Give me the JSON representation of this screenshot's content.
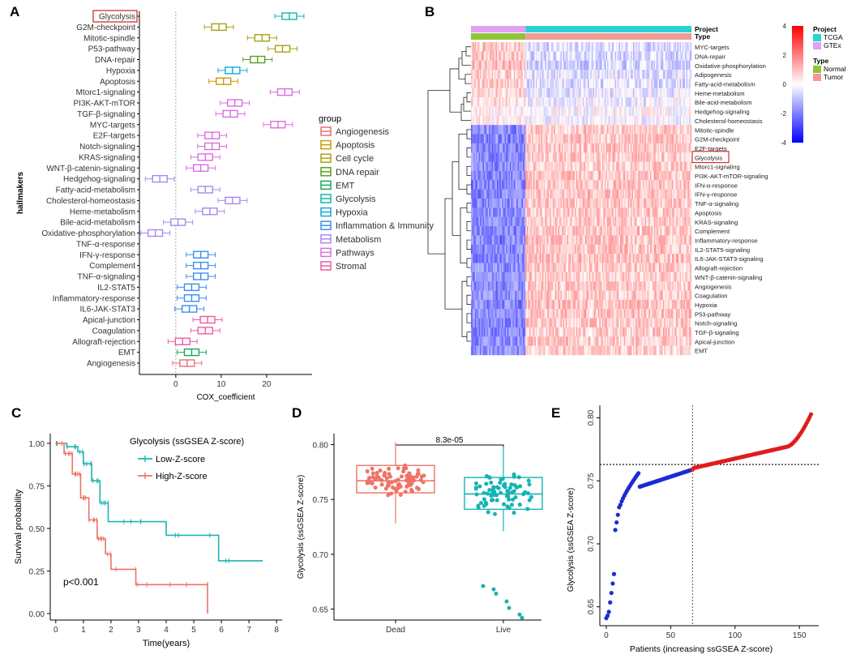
{
  "panels": {
    "a": {
      "letter": "A"
    },
    "b": {
      "letter": "B"
    },
    "c": {
      "letter": "C"
    },
    "d": {
      "letter": "D"
    },
    "e": {
      "letter": "E"
    }
  },
  "colors": {
    "Angiogenesis": "#e66f73",
    "Apoptosis": "#c99a05",
    "Cell cycle": "#a8a212",
    "DNA repair": "#5aa020",
    "EMT": "#16a85e",
    "Glycolysis": "#13b6a8",
    "Hypoxia": "#12a9e0",
    "Inflammation & Immunity": "#3b8ef0",
    "Metabolism": "#a888ee",
    "Pathways": "#da6ee0",
    "Stromal": "#ee5ca2",
    "highlight": "#d32f2f",
    "low": "#1fb3b3",
    "high": "#ee7366",
    "dead": "#ee7366",
    "live": "#16b3b3",
    "blue_pts": "#1a2ad6",
    "red_pts": "#e01c1c",
    "TCGA": "#27d3d3",
    "GTEx": "#e29ff5",
    "Normal": "#8fc43a",
    "Tumor": "#f29a93"
  },
  "chart_data": [
    {
      "type": "boxplot-horizontal",
      "panel": "A",
      "xlabel": "COX_coefficient",
      "ylabel": "hallmakers",
      "xlim": [
        -8,
        30
      ],
      "xticks": [
        0,
        10,
        20
      ],
      "ref_line": 0,
      "highlighted": "Glycolysis",
      "legend_title": "group",
      "legend": [
        "Angiogenesis",
        "Apoptosis",
        "Cell cycle",
        "DNA repair",
        "EMT",
        "Glycolysis",
        "Hypoxia",
        "Inflammation & Immunity",
        "Metabolism",
        "Pathways",
        "Stromal"
      ],
      "rows": [
        {
          "label": "Glycolysis",
          "group": "Glycolysis",
          "median": 25
        },
        {
          "label": "G2M-checkpoint",
          "group": "Cell cycle",
          "median": 9.5
        },
        {
          "label": "Mitotic-spindle",
          "group": "Cell cycle",
          "median": 19
        },
        {
          "label": "P53-pathway",
          "group": "Cell cycle",
          "median": 23.5
        },
        {
          "label": "DNA-repair",
          "group": "DNA repair",
          "median": 18
        },
        {
          "label": "Hypoxia",
          "group": "Hypoxia",
          "median": 12.5
        },
        {
          "label": "Apoptosis",
          "group": "Apoptosis",
          "median": 10.5
        },
        {
          "label": "Mtorc1-signaling",
          "group": "Pathways",
          "median": 24
        },
        {
          "label": "PI3K-AKT-mTOR",
          "group": "Pathways",
          "median": 13
        },
        {
          "label": "TGF-β-signaling",
          "group": "Pathways",
          "median": 12
        },
        {
          "label": "MYC-targets",
          "group": "Pathways",
          "median": 22.5
        },
        {
          "label": "E2F-targets",
          "group": "Pathways",
          "median": 8
        },
        {
          "label": "Notch-signaling",
          "group": "Pathways",
          "median": 8
        },
        {
          "label": "KRAS-signaling",
          "group": "Pathways",
          "median": 6.5
        },
        {
          "label": "WNT-β-catenin-signaling",
          "group": "Pathways",
          "median": 5.5
        },
        {
          "label": "Hedgehog-signaling",
          "group": "Metabolism",
          "median": -3.5
        },
        {
          "label": "Fatty-acid-metabolism",
          "group": "Metabolism",
          "median": 6.5
        },
        {
          "label": "Cholesterol-homeostasis",
          "group": "Metabolism",
          "median": 12.5
        },
        {
          "label": "Heme-metabolism",
          "group": "Metabolism",
          "median": 7.5
        },
        {
          "label": "Bile-acid-metabolism",
          "group": "Metabolism",
          "median": 0.5
        },
        {
          "label": "Oxidative-phosphorylation",
          "group": "Metabolism",
          "median": -4.5
        },
        {
          "label": "TNF-α-response",
          "group": "Inflammation & Immunity",
          "median": null
        },
        {
          "label": "IFN-γ-response",
          "group": "Inflammation & Immunity",
          "median": 5.5
        },
        {
          "label": "Complement",
          "group": "Inflammation & Immunity",
          "median": 5.5
        },
        {
          "label": "TNF-α-signaling",
          "group": "Inflammation & Immunity",
          "median": 5.5
        },
        {
          "label": "IL2-STAT5",
          "group": "Inflammation & Immunity",
          "median": 3.5
        },
        {
          "label": "Inflammatory-response",
          "group": "Inflammation & Immunity",
          "median": 3.5
        },
        {
          "label": "IL6-JAK-STAT3",
          "group": "Inflammation & Immunity",
          "median": 3
        },
        {
          "label": "Apical-junction",
          "group": "Stromal",
          "median": 7
        },
        {
          "label": "Coagulation",
          "group": "Stromal",
          "median": 6.5
        },
        {
          "label": "Allograft-rejection",
          "group": "Stromal",
          "median": 1.5
        },
        {
          "label": "EMT",
          "group": "EMT",
          "median": 3.5
        },
        {
          "label": "Angiogenesis",
          "group": "Angiogenesis",
          "median": 2.5
        }
      ]
    },
    {
      "type": "heatmap",
      "panel": "B",
      "annotations": [
        {
          "name": "Project",
          "levels": [
            "TCGA",
            "GTEx"
          ]
        },
        {
          "name": "Type",
          "levels": [
            "Normal",
            "Tumor"
          ]
        }
      ],
      "columns": [
        {
          "project": "GTEx",
          "type": "Normal",
          "fraction": 0.246
        },
        {
          "project": "TCGA",
          "type": "Tumor",
          "fraction": 0.754
        }
      ],
      "scale": {
        "min": -4,
        "max": 4,
        "ticks": [
          4,
          2,
          0,
          -2,
          -4
        ]
      },
      "highlighted": "Glycolysis",
      "rows": [
        {
          "label": "MYC-targets",
          "normal": 0.8,
          "tumor": -0.5
        },
        {
          "label": "DNA-repair",
          "normal": 0.9,
          "tumor": -0.6
        },
        {
          "label": "Oxidative-phosphorylation",
          "normal": 1.0,
          "tumor": -0.7
        },
        {
          "label": "Adipogenesis",
          "normal": 0.7,
          "tumor": -0.4
        },
        {
          "label": "Fatty-acid-metabolism",
          "normal": 0.8,
          "tumor": -0.5
        },
        {
          "label": "Heme-metabolism",
          "normal": 0.6,
          "tumor": -0.3
        },
        {
          "label": "Bile-acid-metabolism",
          "normal": 0.5,
          "tumor": -0.2
        },
        {
          "label": "Hedgehog-signaling",
          "normal": 0.2,
          "tumor": 0.0
        },
        {
          "label": "Cholesterol-homeostasis",
          "normal": 0.3,
          "tumor": -0.1
        },
        {
          "label": "Mitotic-spindle",
          "normal": -1.8,
          "tumor": 0.8
        },
        {
          "label": "G2M-checkpoint",
          "normal": -1.9,
          "tumor": 0.9
        },
        {
          "label": "E2F-targets",
          "normal": -1.9,
          "tumor": 0.9
        },
        {
          "label": "Glycolysis",
          "normal": -1.8,
          "tumor": 0.8
        },
        {
          "label": "Mtorc1-signaling",
          "normal": -1.8,
          "tumor": 0.8
        },
        {
          "label": "PI3K-AKT-mTOR-signaling",
          "normal": -1.9,
          "tumor": 0.9
        },
        {
          "label": "IFN-α-response",
          "normal": -1.9,
          "tumor": 0.9
        },
        {
          "label": "IFN-γ-response",
          "normal": -1.9,
          "tumor": 0.9
        },
        {
          "label": "TNF-α-signaling",
          "normal": -1.8,
          "tumor": 0.8
        },
        {
          "label": "Apoptosis",
          "normal": -1.8,
          "tumor": 0.8
        },
        {
          "label": "KRAS-signaling",
          "normal": -1.8,
          "tumor": 0.8
        },
        {
          "label": "Complement",
          "normal": -1.9,
          "tumor": 0.9
        },
        {
          "label": "Inflammatory-response",
          "normal": -1.9,
          "tumor": 0.9
        },
        {
          "label": "IL2-STAT5-signaling",
          "normal": -1.9,
          "tumor": 0.9
        },
        {
          "label": "IL6-JAK-STAT3-signaling",
          "normal": -1.9,
          "tumor": 0.9
        },
        {
          "label": "Allograft-rejection",
          "normal": -1.8,
          "tumor": 0.8
        },
        {
          "label": "WNT-β-catenin-signaling",
          "normal": -1.8,
          "tumor": 0.8
        },
        {
          "label": "Angiogenesis",
          "normal": -1.8,
          "tumor": 0.8
        },
        {
          "label": "Coagulation",
          "normal": -1.8,
          "tumor": 0.8
        },
        {
          "label": "Hypoxia",
          "normal": -1.9,
          "tumor": 0.9
        },
        {
          "label": "P53-pathway",
          "normal": -1.9,
          "tumor": 0.9
        },
        {
          "label": "Notch-signaling",
          "normal": -1.8,
          "tumor": 0.8
        },
        {
          "label": "TGF-β-signaling",
          "normal": -1.8,
          "tumor": 0.8
        },
        {
          "label": "Apical-junction",
          "normal": -1.8,
          "tumor": 0.8
        },
        {
          "label": "EMT",
          "normal": -1.7,
          "tumor": 0.7
        }
      ]
    },
    {
      "type": "line",
      "subtype": "kaplan-meier",
      "panel": "C",
      "xlabel": "Time(years)",
      "ylabel": "Survival probability",
      "xlim": [
        -0.2,
        8.2
      ],
      "ylim": [
        0,
        1
      ],
      "xticks": [
        0,
        1,
        2,
        3,
        4,
        5,
        6,
        7,
        8
      ],
      "yticks": [
        "0.00",
        "0.25",
        "0.50",
        "0.75",
        "1.00"
      ],
      "legend_title": "Glycolysis (ssGSEA Z-score)",
      "annotation": "p<0.001",
      "series": [
        {
          "name": "Low-Z-score",
          "points": [
            [
              0,
              1
            ],
            [
              0.4,
              0.98
            ],
            [
              0.8,
              0.95
            ],
            [
              1.0,
              0.88
            ],
            [
              1.3,
              0.78
            ],
            [
              1.6,
              0.65
            ],
            [
              1.9,
              0.54
            ],
            [
              4.0,
              0.46
            ],
            [
              5.9,
              0.31
            ],
            [
              7.5,
              0.31
            ]
          ]
        },
        {
          "name": "High-Z-score",
          "points": [
            [
              0,
              1
            ],
            [
              0.3,
              0.94
            ],
            [
              0.6,
              0.82
            ],
            [
              0.9,
              0.68
            ],
            [
              1.2,
              0.55
            ],
            [
              1.5,
              0.44
            ],
            [
              1.8,
              0.35
            ],
            [
              2.0,
              0.26
            ],
            [
              2.9,
              0.17
            ],
            [
              5.5,
              0.17
            ],
            [
              5.5,
              0.0
            ]
          ]
        }
      ]
    },
    {
      "type": "scatter",
      "subtype": "box-with-jitter",
      "panel": "D",
      "categories": [
        "Dead",
        "Live"
      ],
      "ylabel": "Glycolysis (ssGSEA Z-score)",
      "ylim": [
        0.64,
        0.81
      ],
      "yticks": [
        "0.65",
        "0.70",
        "0.75",
        "0.80"
      ],
      "p_value": "8.3e-05",
      "boxes": [
        {
          "name": "Dead",
          "q1": 0.756,
          "median": 0.767,
          "q3": 0.781,
          "min": 0.728,
          "max": 0.802
        },
        {
          "name": "Live",
          "q1": 0.741,
          "median": 0.755,
          "q3": 0.77,
          "min": 0.721,
          "max": 0.798
        }
      ]
    },
    {
      "type": "scatter",
      "panel": "E",
      "xlabel": "Patients (increasing ssGSEA Z-score)",
      "ylabel": "Glycolysis (ssGSEA Z-score)",
      "xlim": [
        -5,
        165
      ],
      "ylim": [
        0.635,
        0.81
      ],
      "xticks": [
        0,
        50,
        100,
        150
      ],
      "yticks": [
        "0.65",
        "0.70",
        "0.75",
        "0.80"
      ],
      "cutoff_x": 67,
      "cutoff_y": 0.763,
      "n_patients": 160
    }
  ]
}
